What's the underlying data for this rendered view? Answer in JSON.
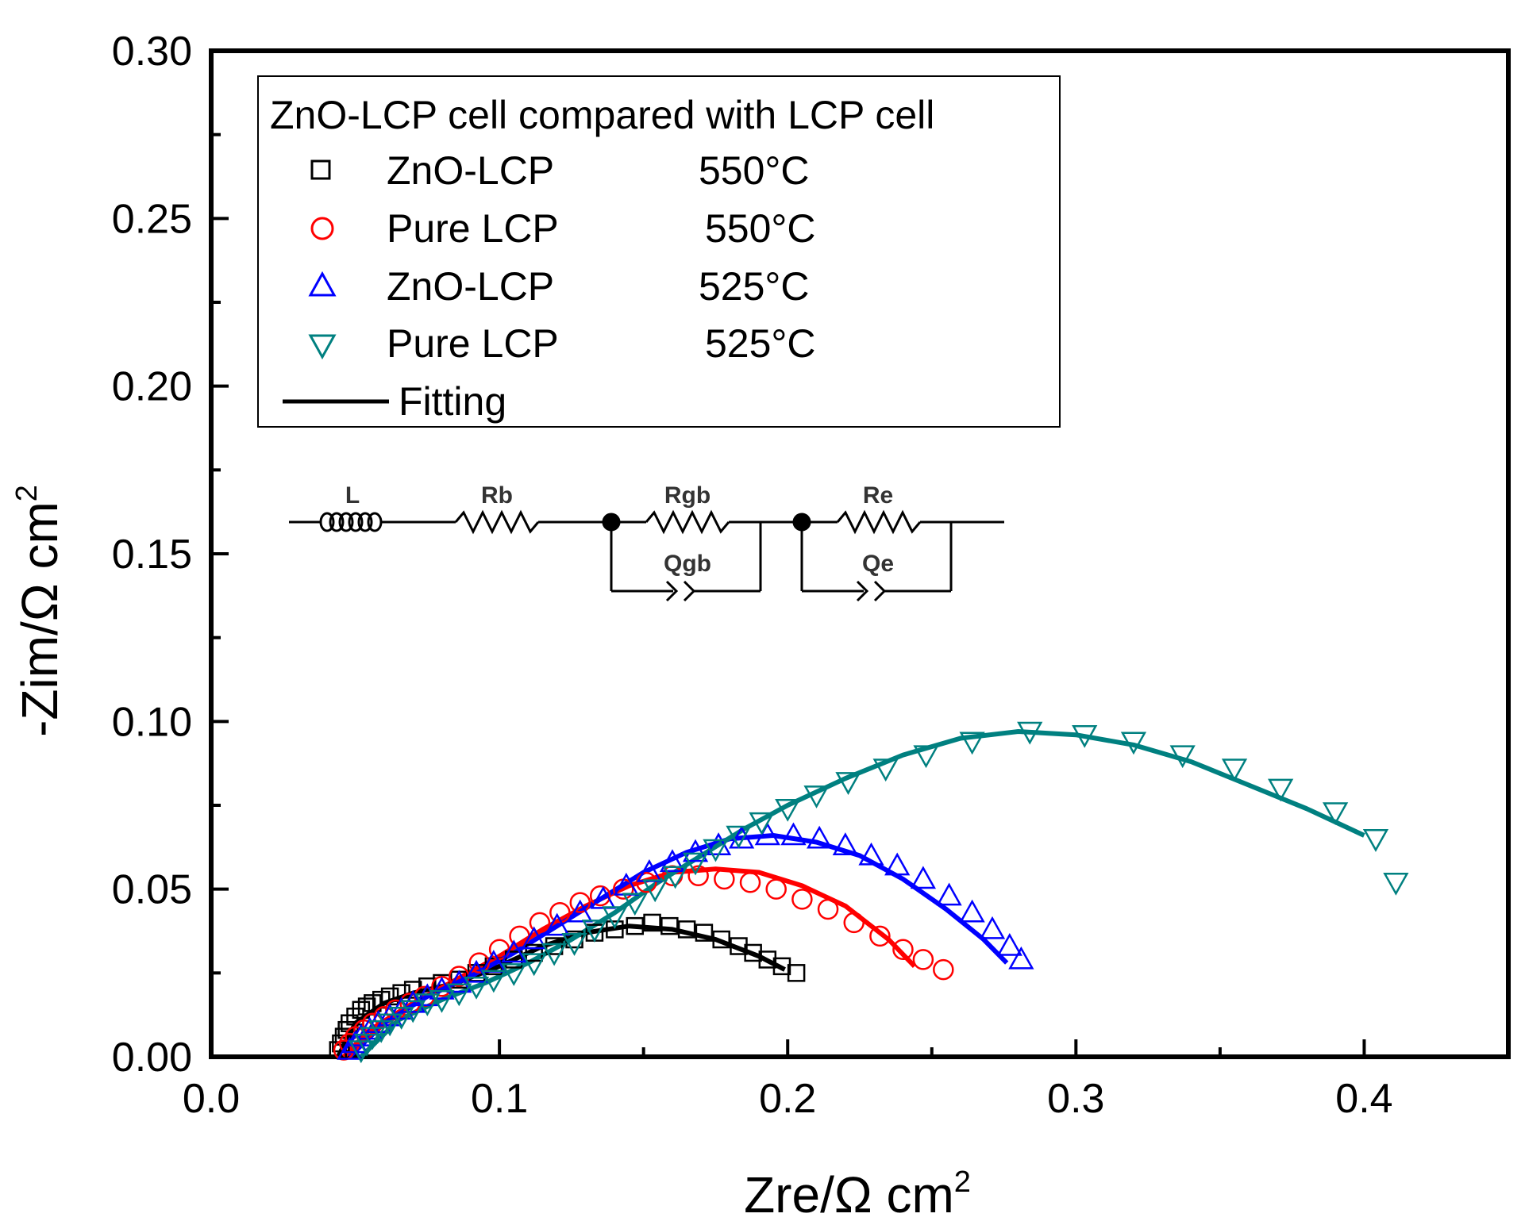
{
  "chart_data": {
    "type": "scatter",
    "title": "",
    "xlabel": "Zre/Ω cm",
    "xlabel_sup": "2",
    "ylabel": "-Zim/Ω cm",
    "ylabel_sup": "2",
    "xlim": [
      0,
      0.45
    ],
    "ylim": [
      0,
      0.3
    ],
    "x_ticks": [
      0.0,
      0.1,
      0.2,
      0.3,
      0.4
    ],
    "x_tick_labels": [
      "0.0",
      "0.1",
      "0.2",
      "0.3",
      "0.4"
    ],
    "y_ticks": [
      0.0,
      0.05,
      0.1,
      0.15,
      0.2,
      0.25,
      0.3
    ],
    "y_tick_labels": [
      "0.00",
      "0.05",
      "0.10",
      "0.15",
      "0.20",
      "0.25",
      "0.30"
    ],
    "legend": {
      "title": "ZnO-LCP cell compared with LCP cell",
      "placement": "top-left",
      "entries": [
        {
          "marker": "square",
          "color": "#000000",
          "label": "ZnO-LCP",
          "temp": "550°C"
        },
        {
          "marker": "circle",
          "color": "#ff0000",
          "label": "Pure LCP",
          "temp": "550°C"
        },
        {
          "marker": "triangle-up",
          "color": "#0000ff",
          "label": "ZnO-LCP",
          "temp": "525°C"
        },
        {
          "marker": "triangle-down",
          "color": "#008080",
          "label": "Pure LCP",
          "temp": "525°C"
        }
      ],
      "fitting_label": "Fitting"
    },
    "inset_circuit": {
      "labels": [
        "L",
        "Rb",
        "Rgb",
        "Qgb",
        "Re",
        "Qe"
      ]
    },
    "series": [
      {
        "name": "ZnO-LCP 550°C",
        "marker": "square",
        "color": "#000000",
        "x": [
          0.044,
          0.045,
          0.046,
          0.047,
          0.048,
          0.05,
          0.052,
          0.054,
          0.056,
          0.059,
          0.062,
          0.066,
          0.07,
          0.075,
          0.08,
          0.086,
          0.092,
          0.098,
          0.105,
          0.112,
          0.119,
          0.126,
          0.133,
          0.14,
          0.147,
          0.153,
          0.159,
          0.165,
          0.171,
          0.177,
          0.183,
          0.188,
          0.193,
          0.198,
          0.203
        ],
        "y": [
          0.002,
          0.004,
          0.006,
          0.008,
          0.01,
          0.012,
          0.014,
          0.015,
          0.016,
          0.017,
          0.018,
          0.019,
          0.02,
          0.021,
          0.022,
          0.023,
          0.025,
          0.027,
          0.029,
          0.031,
          0.033,
          0.035,
          0.037,
          0.038,
          0.039,
          0.04,
          0.039,
          0.038,
          0.037,
          0.035,
          0.033,
          0.031,
          0.029,
          0.027,
          0.025
        ]
      },
      {
        "name": "Pure LCP 550°C",
        "marker": "circle",
        "color": "#ff0000",
        "x": [
          0.046,
          0.048,
          0.05,
          0.053,
          0.056,
          0.06,
          0.064,
          0.069,
          0.074,
          0.08,
          0.086,
          0.093,
          0.1,
          0.107,
          0.114,
          0.121,
          0.128,
          0.135,
          0.143,
          0.151,
          0.16,
          0.169,
          0.178,
          0.187,
          0.196,
          0.205,
          0.214,
          0.223,
          0.232,
          0.24,
          0.247,
          0.254
        ],
        "y": [
          0.002,
          0.004,
          0.006,
          0.008,
          0.01,
          0.012,
          0.014,
          0.016,
          0.018,
          0.021,
          0.024,
          0.028,
          0.032,
          0.036,
          0.04,
          0.043,
          0.046,
          0.048,
          0.05,
          0.052,
          0.054,
          0.054,
          0.053,
          0.052,
          0.05,
          0.047,
          0.044,
          0.04,
          0.036,
          0.032,
          0.029,
          0.026
        ]
      },
      {
        "name": "ZnO-LCP 525°C",
        "marker": "triangle-up",
        "color": "#0000ff",
        "x": [
          0.048,
          0.05,
          0.052,
          0.055,
          0.058,
          0.062,
          0.066,
          0.07,
          0.075,
          0.08,
          0.086,
          0.092,
          0.098,
          0.105,
          0.112,
          0.12,
          0.128,
          0.136,
          0.144,
          0.152,
          0.16,
          0.168,
          0.176,
          0.184,
          0.193,
          0.202,
          0.211,
          0.22,
          0.229,
          0.238,
          0.247,
          0.256,
          0.264,
          0.271,
          0.277,
          0.281
        ],
        "y": [
          0.002,
          0.004,
          0.006,
          0.008,
          0.01,
          0.012,
          0.014,
          0.016,
          0.018,
          0.02,
          0.022,
          0.025,
          0.028,
          0.031,
          0.035,
          0.039,
          0.043,
          0.047,
          0.051,
          0.055,
          0.058,
          0.061,
          0.063,
          0.065,
          0.066,
          0.066,
          0.065,
          0.063,
          0.06,
          0.057,
          0.053,
          0.048,
          0.043,
          0.038,
          0.033,
          0.029
        ]
      },
      {
        "name": "Pure LCP 525°C",
        "marker": "triangle-down",
        "color": "#008080",
        "x": [
          0.052,
          0.054,
          0.056,
          0.059,
          0.062,
          0.066,
          0.07,
          0.075,
          0.08,
          0.086,
          0.092,
          0.098,
          0.105,
          0.112,
          0.119,
          0.126,
          0.133,
          0.14,
          0.147,
          0.154,
          0.161,
          0.168,
          0.175,
          0.183,
          0.191,
          0.2,
          0.21,
          0.221,
          0.234,
          0.248,
          0.264,
          0.284,
          0.303,
          0.32,
          0.337,
          0.355,
          0.371,
          0.39,
          0.404,
          0.411
        ],
        "y": [
          0.002,
          0.004,
          0.006,
          0.008,
          0.01,
          0.012,
          0.014,
          0.016,
          0.017,
          0.019,
          0.021,
          0.023,
          0.025,
          0.028,
          0.031,
          0.034,
          0.038,
          0.042,
          0.046,
          0.05,
          0.054,
          0.058,
          0.062,
          0.066,
          0.07,
          0.074,
          0.078,
          0.082,
          0.086,
          0.09,
          0.094,
          0.097,
          0.096,
          0.094,
          0.09,
          0.086,
          0.08,
          0.073,
          0.065,
          0.052
        ]
      }
    ],
    "fits": [
      {
        "color": "#000000",
        "x": [
          0.044,
          0.05,
          0.06,
          0.07,
          0.085,
          0.1,
          0.115,
          0.13,
          0.145,
          0.16,
          0.175,
          0.19,
          0.199
        ],
        "y": [
          0.0,
          0.01,
          0.016,
          0.019,
          0.022,
          0.027,
          0.033,
          0.037,
          0.039,
          0.038,
          0.035,
          0.03,
          0.026
        ]
      },
      {
        "color": "#ff0000",
        "x": [
          0.046,
          0.055,
          0.07,
          0.085,
          0.1,
          0.115,
          0.13,
          0.145,
          0.16,
          0.175,
          0.19,
          0.205,
          0.22,
          0.235,
          0.244
        ],
        "y": [
          0.0,
          0.008,
          0.016,
          0.023,
          0.03,
          0.038,
          0.045,
          0.051,
          0.055,
          0.056,
          0.055,
          0.051,
          0.045,
          0.035,
          0.027
        ]
      },
      {
        "color": "#0000ff",
        "x": [
          0.048,
          0.06,
          0.075,
          0.09,
          0.105,
          0.12,
          0.135,
          0.15,
          0.165,
          0.18,
          0.195,
          0.21,
          0.225,
          0.24,
          0.255,
          0.268,
          0.276
        ],
        "y": [
          0.0,
          0.01,
          0.018,
          0.024,
          0.031,
          0.039,
          0.047,
          0.055,
          0.061,
          0.065,
          0.066,
          0.064,
          0.06,
          0.053,
          0.044,
          0.035,
          0.028
        ]
      },
      {
        "color": "#008080",
        "x": [
          0.052,
          0.065,
          0.08,
          0.095,
          0.11,
          0.125,
          0.14,
          0.155,
          0.17,
          0.185,
          0.2,
          0.22,
          0.24,
          0.26,
          0.28,
          0.3,
          0.32,
          0.34,
          0.36,
          0.38,
          0.4
        ],
        "y": [
          0.0,
          0.011,
          0.017,
          0.022,
          0.028,
          0.035,
          0.043,
          0.052,
          0.06,
          0.068,
          0.075,
          0.083,
          0.09,
          0.095,
          0.097,
          0.096,
          0.093,
          0.088,
          0.081,
          0.074,
          0.066
        ]
      }
    ]
  }
}
